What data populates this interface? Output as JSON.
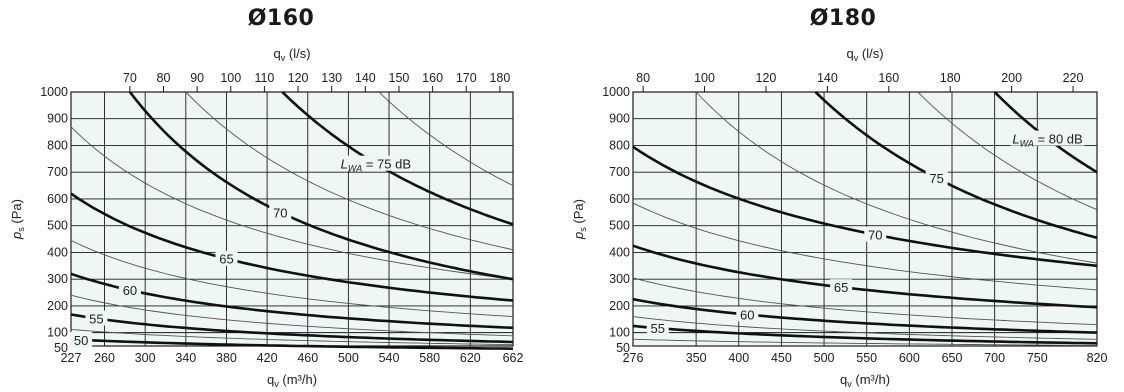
{
  "colors": {
    "plot_background": "#eef7f5",
    "grid": "#1a1a1a",
    "bold_curve": "#111111",
    "thin_curve": "#555555"
  },
  "chart_data": [
    {
      "type": "line",
      "title": "Ø160",
      "top_axis_label": "q_v (l/s)",
      "xlabel": "q_v (m³/h)",
      "ylabel": "p_s (Pa)",
      "xlim": [
        227,
        662
      ],
      "ylim": [
        50,
        1000
      ],
      "x_ticks": [
        227,
        260,
        300,
        340,
        380,
        420,
        460,
        500,
        540,
        580,
        620,
        662
      ],
      "top_ticks": [
        70,
        80,
        90,
        100,
        110,
        120,
        130,
        140,
        150,
        160,
        170,
        180
      ],
      "y_ticks": [
        50,
        100,
        200,
        300,
        400,
        500,
        600,
        700,
        800,
        900,
        1000
      ],
      "grid": true,
      "series": [
        {
          "name": "50",
          "bold": true,
          "label": "50",
          "label_x": 237,
          "x": [
            227,
            662
          ],
          "y": [
            75,
            40
          ]
        },
        {
          "name": "52.5",
          "bold": false,
          "x": [
            227,
            662
          ],
          "y": [
            112,
            55
          ]
        },
        {
          "name": "55",
          "bold": true,
          "label": "55",
          "label_x": 252,
          "x": [
            227,
            662
          ],
          "y": [
            168,
            65
          ]
        },
        {
          "name": "57.5",
          "bold": false,
          "x": [
            227,
            662
          ],
          "y": [
            240,
            88
          ]
        },
        {
          "name": "60",
          "bold": true,
          "label": "60",
          "label_x": 285,
          "x": [
            227,
            662
          ],
          "y": [
            320,
            118
          ]
        },
        {
          "name": "62.5",
          "bold": false,
          "x": [
            227,
            662
          ],
          "y": [
            445,
            160
          ]
        },
        {
          "name": "65",
          "bold": true,
          "label": "65",
          "label_x": 380,
          "x": [
            227,
            662
          ],
          "y": [
            620,
            220
          ]
        },
        {
          "name": "67.5",
          "bold": false,
          "x": [
            227,
            662
          ],
          "y": [
            870,
            300
          ]
        },
        {
          "name": "70",
          "bold": true,
          "label": "70",
          "label_x": 433,
          "x": [
            285,
            662
          ],
          "y": [
            1000,
            300
          ]
        },
        {
          "name": "72.5",
          "bold": false,
          "x": [
            340,
            662
          ],
          "y": [
            1000,
            410
          ]
        },
        {
          "name": "75",
          "bold": true,
          "label": "L_WA = 75 dB",
          "label_x": 527,
          "x": [
            435,
            662
          ],
          "y": [
            1000,
            505
          ]
        },
        {
          "name": "77.5",
          "bold": false,
          "x": [
            530,
            662
          ],
          "y": [
            1000,
            650
          ]
        }
      ]
    },
    {
      "type": "line",
      "title": "Ø180",
      "top_axis_label": "q_v (l/s)",
      "xlabel": "q_v (m³/h)",
      "ylabel": "p_s (Pa)",
      "xlim": [
        276,
        820
      ],
      "ylim": [
        50,
        1000
      ],
      "x_ticks": [
        276,
        350,
        400,
        450,
        500,
        550,
        600,
        650,
        700,
        750,
        820
      ],
      "top_ticks": [
        80,
        100,
        120,
        140,
        160,
        180,
        200,
        220
      ],
      "y_ticks": [
        50,
        100,
        200,
        300,
        400,
        500,
        600,
        700,
        800,
        900,
        1000
      ],
      "grid": true,
      "series": [
        {
          "name": "52.5",
          "bold": false,
          "x": [
            276,
            820
          ],
          "y": [
            75,
            52
          ]
        },
        {
          "name": "55",
          "bold": true,
          "label": "55",
          "label_x": 305,
          "x": [
            276,
            820
          ],
          "y": [
            125,
            60
          ]
        },
        {
          "name": "57.5",
          "bold": false,
          "x": [
            276,
            820
          ],
          "y": [
            160,
            75
          ]
        },
        {
          "name": "60",
          "bold": true,
          "label": "60",
          "label_x": 410,
          "x": [
            276,
            820
          ],
          "y": [
            225,
            100
          ]
        },
        {
          "name": "62.5",
          "bold": false,
          "x": [
            276,
            820
          ],
          "y": [
            305,
            130
          ]
        },
        {
          "name": "65",
          "bold": true,
          "label": "65",
          "label_x": 520,
          "x": [
            276,
            820
          ],
          "y": [
            425,
            195
          ]
        },
        {
          "name": "67.5",
          "bold": false,
          "x": [
            276,
            820
          ],
          "y": [
            585,
            260
          ]
        },
        {
          "name": "70",
          "bold": true,
          "label": "70",
          "label_x": 560,
          "x": [
            276,
            820
          ],
          "y": [
            795,
            350
          ]
        },
        {
          "name": "72.5",
          "bold": false,
          "x": [
            350,
            820
          ],
          "y": [
            1000,
            360
          ]
        },
        {
          "name": "75",
          "bold": true,
          "label": "75",
          "label_x": 632,
          "x": [
            490,
            820
          ],
          "y": [
            1000,
            455
          ]
        },
        {
          "name": "77.5",
          "bold": false,
          "x": [
            610,
            820
          ],
          "y": [
            1000,
            560
          ]
        },
        {
          "name": "80",
          "bold": true,
          "label": "L_WA = 80 dB",
          "label_x": 762,
          "x": [
            700,
            820
          ],
          "y": [
            1000,
            700
          ]
        }
      ]
    }
  ]
}
